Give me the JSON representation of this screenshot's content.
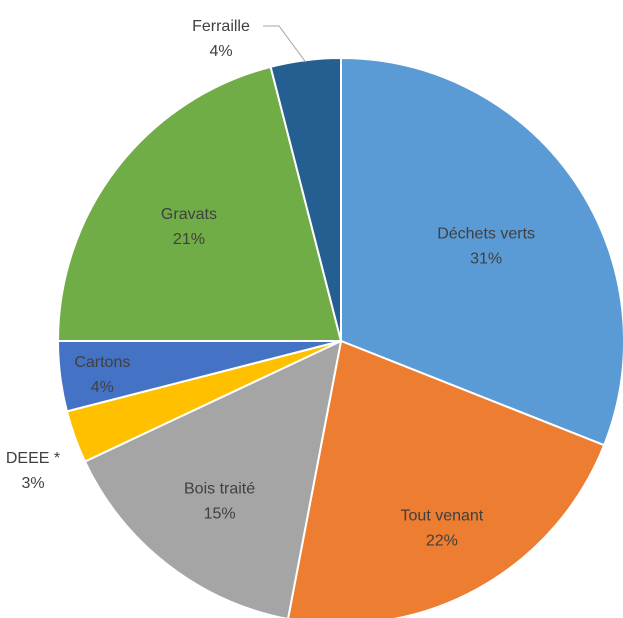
{
  "chart_data": {
    "type": "pie",
    "title": "",
    "categories": [
      "Déchets verts",
      "Tout venant",
      "Bois traité",
      "DEEE *",
      "Cartons",
      "Gravats",
      "Ferraille"
    ],
    "values": [
      31,
      22,
      15,
      3,
      4,
      21,
      4
    ],
    "percent_labels": [
      "31%",
      "22%",
      "15%",
      "3%",
      "4%",
      "21%",
      "4%"
    ],
    "colors": [
      "#5b9bd5",
      "#ed7d31",
      "#a5a5a5",
      "#ffc000",
      "#4472c4",
      "#70ad47",
      "#255e91"
    ],
    "start_angle_deg": 0,
    "direction": "clockwise",
    "legend": "none",
    "labels_position": "inside-with-outside-for-small"
  }
}
